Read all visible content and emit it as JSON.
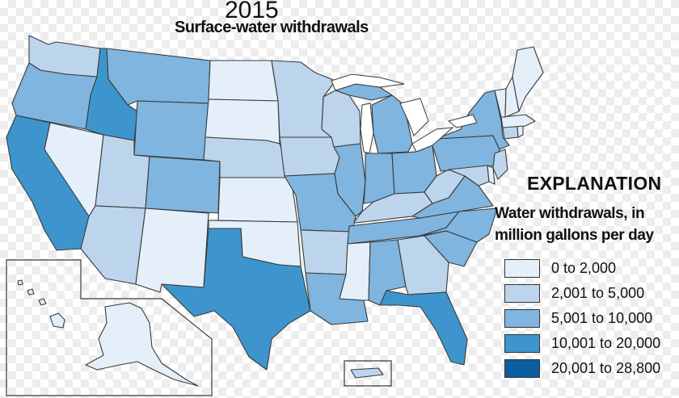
{
  "header": {
    "year": "2015",
    "title": "Surface-water withdrawals"
  },
  "legend": {
    "title": "EXPLANATION",
    "subtitle": "Water withdrawals, in\nmillion gallons per day",
    "classes": [
      {
        "label": "0 to 2,000",
        "color": "#e4eff9"
      },
      {
        "label": "2,001 to 5,000",
        "color": "#bcd5ec"
      },
      {
        "label": "5,001 to 10,000",
        "color": "#7fb5df"
      },
      {
        "label": "10,001 to 20,000",
        "color": "#3e95cd"
      },
      {
        "label": "20,001 to 28,800",
        "color": "#0b5fa0"
      }
    ]
  },
  "map_data": {
    "states": [
      {
        "name": "Washington",
        "class": 1
      },
      {
        "name": "Oregon",
        "class": 2
      },
      {
        "name": "California",
        "class": 3
      },
      {
        "name": "Idaho",
        "class": 3
      },
      {
        "name": "Nevada",
        "class": 0
      },
      {
        "name": "Utah",
        "class": 1
      },
      {
        "name": "Arizona",
        "class": 1
      },
      {
        "name": "Montana",
        "class": 2
      },
      {
        "name": "Wyoming",
        "class": 2
      },
      {
        "name": "Colorado",
        "class": 2
      },
      {
        "name": "New Mexico",
        "class": 0
      },
      {
        "name": "North Dakota",
        "class": 0
      },
      {
        "name": "South Dakota",
        "class": 0
      },
      {
        "name": "Nebraska",
        "class": 1
      },
      {
        "name": "Kansas",
        "class": 0
      },
      {
        "name": "Oklahoma",
        "class": 0
      },
      {
        "name": "Texas",
        "class": 3
      },
      {
        "name": "Minnesota",
        "class": 1
      },
      {
        "name": "Iowa",
        "class": 1
      },
      {
        "name": "Missouri",
        "class": 2
      },
      {
        "name": "Arkansas",
        "class": 1
      },
      {
        "name": "Louisiana",
        "class": 2
      },
      {
        "name": "Wisconsin",
        "class": 1
      },
      {
        "name": "Illinois",
        "class": 2
      },
      {
        "name": "Michigan",
        "class": 2
      },
      {
        "name": "Indiana",
        "class": 2
      },
      {
        "name": "Ohio",
        "class": 2
      },
      {
        "name": "Kentucky",
        "class": 1
      },
      {
        "name": "Tennessee",
        "class": 2
      },
      {
        "name": "Mississippi",
        "class": 0
      },
      {
        "name": "Alabama",
        "class": 2
      },
      {
        "name": "Georgia",
        "class": 1
      },
      {
        "name": "Florida",
        "class": 3
      },
      {
        "name": "South Carolina",
        "class": 2
      },
      {
        "name": "North Carolina",
        "class": 2
      },
      {
        "name": "Virginia",
        "class": 2
      },
      {
        "name": "West Virginia",
        "class": 1
      },
      {
        "name": "Pennsylvania",
        "class": 2
      },
      {
        "name": "New York",
        "class": 2
      },
      {
        "name": "New Jersey",
        "class": 1
      },
      {
        "name": "Maryland",
        "class": 1
      },
      {
        "name": "Delaware",
        "class": 0
      },
      {
        "name": "Connecticut",
        "class": 1
      },
      {
        "name": "Rhode Island",
        "class": 0
      },
      {
        "name": "Massachusetts",
        "class": 0
      },
      {
        "name": "Vermont",
        "class": 0
      },
      {
        "name": "New Hampshire",
        "class": 0
      },
      {
        "name": "Maine",
        "class": 0
      },
      {
        "name": "Alaska",
        "class": 0
      },
      {
        "name": "Hawaii",
        "class": 0
      },
      {
        "name": "Puerto Rico",
        "class": 1
      }
    ]
  }
}
